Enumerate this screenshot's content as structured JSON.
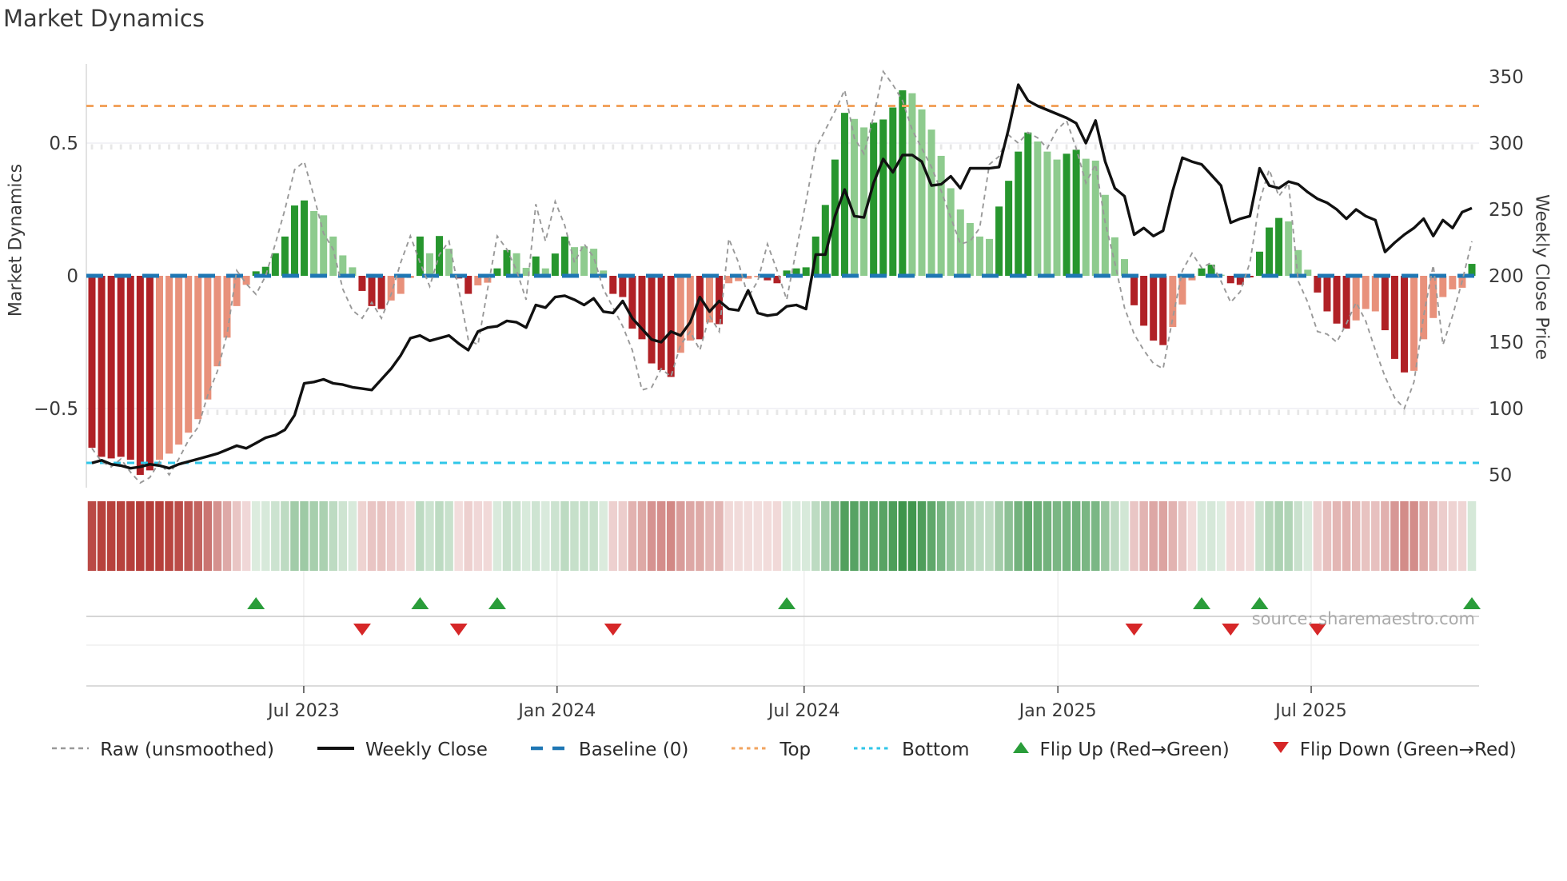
{
  "title": "Market Dynamics",
  "source_text": "source: sharemaestro.com",
  "chart_data": {
    "type": "bar",
    "title": "Market Dynamics",
    "ylabel_left": "Market Dynamics",
    "ylabel_right": "Weekly Close Price",
    "ylim": [
      -0.8,
      0.8
    ],
    "price_ylim": [
      40,
      360
    ],
    "grid": "horizontal at +0.5 and -0.5 only",
    "legend_position": "bottom center",
    "left_ticks": [
      {
        "v": 0.5,
        "label": "0.5"
      },
      {
        "v": 0.0,
        "label": "0"
      },
      {
        "v": -0.5,
        "label": "−0.5"
      }
    ],
    "right_ticks": [
      {
        "p": 350,
        "label": "350"
      },
      {
        "p": 300,
        "label": "300"
      },
      {
        "p": 250,
        "label": "250"
      },
      {
        "p": 200,
        "label": "200"
      },
      {
        "p": 150,
        "label": "150"
      },
      {
        "p": 100,
        "label": "100"
      },
      {
        "p": 50,
        "label": "50"
      }
    ],
    "x_ticks": [
      {
        "week": 21.95,
        "label": "Jul 2023"
      },
      {
        "week": 48.2,
        "label": "Jan 2024"
      },
      {
        "week": 73.8,
        "label": "Jul 2024"
      },
      {
        "week": 100.1,
        "label": "Jan 2025"
      },
      {
        "week": 126.35,
        "label": "Jul 2025"
      }
    ],
    "top_line": 0.64,
    "bottom_line": -0.705,
    "baseline": 0.0,
    "bar_values": [
      -0.648,
      -0.682,
      -0.688,
      -0.682,
      -0.693,
      -0.75,
      -0.733,
      -0.693,
      -0.67,
      -0.636,
      -0.591,
      -0.54,
      -0.466,
      -0.341,
      -0.233,
      -0.114,
      -0.034,
      0.017,
      0.034,
      0.085,
      0.148,
      0.265,
      0.284,
      0.244,
      0.228,
      0.148,
      0.077,
      0.032,
      -0.057,
      -0.114,
      -0.125,
      -0.093,
      -0.068,
      -0.008,
      0.148,
      0.085,
      0.15,
      0.102,
      -0.01,
      -0.068,
      -0.036,
      -0.026,
      0.028,
      0.097,
      0.085,
      0.03,
      0.073,
      0.028,
      0.084,
      0.148,
      0.108,
      0.111,
      0.102,
      0.02,
      -0.068,
      -0.08,
      -0.199,
      -0.239,
      -0.33,
      -0.355,
      -0.381,
      -0.29,
      -0.244,
      -0.239,
      -0.176,
      -0.182,
      -0.028,
      -0.02,
      -0.011,
      -0.005,
      -0.017,
      -0.028,
      0.02,
      0.028,
      0.032,
      0.148,
      0.267,
      0.438,
      0.614,
      0.591,
      0.559,
      0.577,
      0.589,
      0.634,
      0.699,
      0.688,
      0.627,
      0.551,
      0.452,
      0.33,
      0.25,
      0.199,
      0.148,
      0.139,
      0.261,
      0.358,
      0.468,
      0.54,
      0.506,
      0.468,
      0.438,
      0.46,
      0.475,
      0.441,
      0.434,
      0.305,
      0.145,
      0.063,
      -0.111,
      -0.188,
      -0.244,
      -0.261,
      -0.193,
      -0.108,
      -0.017,
      0.028,
      0.042,
      0.004,
      -0.028,
      -0.034,
      -0.006,
      0.091,
      0.182,
      0.218,
      0.205,
      0.097,
      0.023,
      -0.063,
      -0.134,
      -0.18,
      -0.199,
      -0.168,
      -0.125,
      -0.134,
      -0.205,
      -0.313,
      -0.364,
      -0.358,
      -0.239,
      -0.159,
      -0.08,
      -0.051,
      -0.045,
      0.045
    ],
    "bar_shades": [
      "dr",
      "dr",
      "dr",
      "dr",
      "dr",
      "dr",
      "dr",
      "lr",
      "lr",
      "lr",
      "lr",
      "lr",
      "lr",
      "lr",
      "lr",
      "lr",
      "lr",
      "dg",
      "dg",
      "dg",
      "dg",
      "dg",
      "dg",
      "lg",
      "lg",
      "lg",
      "lg",
      "lg",
      "dr",
      "dr",
      "dr",
      "lr",
      "lr",
      "lr",
      "dg",
      "lg",
      "dg",
      "lg",
      "dr",
      "dr",
      "lr",
      "lr",
      "dg",
      "dg",
      "lg",
      "lg",
      "dg",
      "lg",
      "dg",
      "dg",
      "lg",
      "lg",
      "lg",
      "lg",
      "dr",
      "dr",
      "dr",
      "dr",
      "dr",
      "dr",
      "dr",
      "lr",
      "lr",
      "dr",
      "lr",
      "dr",
      "lr",
      "lr",
      "lr",
      "lr",
      "dr",
      "dr",
      "dg",
      "dg",
      "dg",
      "dg",
      "dg",
      "dg",
      "dg",
      "lg",
      "lg",
      "dg",
      "dg",
      "dg",
      "dg",
      "lg",
      "lg",
      "lg",
      "lg",
      "lg",
      "lg",
      "lg",
      "lg",
      "lg",
      "dg",
      "dg",
      "dg",
      "dg",
      "lg",
      "lg",
      "lg",
      "dg",
      "dg",
      "lg",
      "lg",
      "lg",
      "lg",
      "lg",
      "dr",
      "dr",
      "dr",
      "dr",
      "lr",
      "lr",
      "lr",
      "dg",
      "dg",
      "lg",
      "dr",
      "dr",
      "dr",
      "dg",
      "dg",
      "dg",
      "lg",
      "lg",
      "lg",
      "dr",
      "dr",
      "dr",
      "dr",
      "lr",
      "lr",
      "lr",
      "dr",
      "dr",
      "dr",
      "lr",
      "lr",
      "lr",
      "lr",
      "lr",
      "lr",
      "dg"
    ],
    "raw_values": [
      -0.65,
      -0.7,
      -0.72,
      -0.69,
      -0.74,
      -0.78,
      -0.76,
      -0.7,
      -0.75,
      -0.69,
      -0.62,
      -0.57,
      -0.45,
      -0.36,
      -0.22,
      0.02,
      -0.03,
      -0.07,
      0.0,
      0.12,
      0.25,
      0.4,
      0.43,
      0.3,
      0.16,
      0.1,
      -0.05,
      -0.13,
      -0.16,
      -0.1,
      -0.16,
      -0.07,
      0.05,
      0.15,
      0.05,
      -0.04,
      0.08,
      0.13,
      -0.05,
      -0.24,
      -0.26,
      -0.05,
      0.15,
      0.1,
      0.02,
      -0.09,
      0.27,
      0.13,
      0.28,
      0.19,
      0.05,
      0.12,
      0.07,
      -0.05,
      -0.12,
      -0.19,
      -0.28,
      -0.43,
      -0.42,
      -0.35,
      -0.38,
      -0.26,
      -0.21,
      -0.28,
      -0.15,
      -0.21,
      0.14,
      0.05,
      -0.08,
      -0.02,
      0.12,
      0.02,
      -0.09,
      0.1,
      0.28,
      0.48,
      0.55,
      0.62,
      0.7,
      0.52,
      0.46,
      0.6,
      0.77,
      0.72,
      0.66,
      0.55,
      0.48,
      0.41,
      0.32,
      0.22,
      0.12,
      0.13,
      0.18,
      0.42,
      0.45,
      0.53,
      0.5,
      0.54,
      0.52,
      0.48,
      0.55,
      0.585,
      0.48,
      0.35,
      0.42,
      0.2,
      0.05,
      -0.12,
      -0.22,
      -0.28,
      -0.33,
      -0.35,
      -0.16,
      0.02,
      0.085,
      0.03,
      0.05,
      -0.02,
      -0.1,
      -0.06,
      0.05,
      0.28,
      0.4,
      0.3,
      0.35,
      -0.02,
      -0.1,
      -0.21,
      -0.22,
      -0.25,
      -0.18,
      -0.1,
      -0.17,
      -0.28,
      -0.38,
      -0.46,
      -0.5,
      -0.4,
      -0.15,
      0.04,
      -0.26,
      -0.15,
      -0.02,
      0.13
    ],
    "price_values": [
      59,
      61,
      58,
      57,
      55,
      56,
      58,
      57,
      55,
      58,
      60,
      62,
      64,
      66,
      69,
      72,
      70,
      74,
      78,
      80,
      84,
      95,
      119,
      120,
      122,
      119,
      118,
      116,
      115,
      114,
      122,
      130,
      140,
      153,
      155,
      151,
      153,
      155,
      149,
      144,
      158,
      161,
      162,
      166,
      165,
      161,
      178,
      176,
      184,
      185,
      182,
      178,
      183,
      173,
      172,
      181,
      168,
      160,
      152,
      150,
      158,
      155,
      165,
      184,
      173,
      181,
      175,
      174,
      189,
      172,
      170,
      171,
      177,
      178,
      175,
      216,
      216,
      245,
      265,
      245,
      244,
      270,
      288,
      278,
      291,
      291,
      286,
      268,
      269,
      275,
      266,
      281,
      281,
      281,
      282,
      311,
      344,
      332,
      328,
      325,
      322,
      319,
      315,
      300,
      317,
      286,
      266,
      260,
      231,
      236,
      230,
      234,
      264,
      289,
      286,
      284,
      276,
      268,
      240,
      243,
      245,
      281,
      268,
      266,
      271,
      269,
      263,
      258,
      255,
      250,
      243,
      250,
      245,
      242,
      218,
      225,
      231,
      236,
      243,
      230,
      242,
      236,
      248,
      251
    ],
    "flip_up_weeks": [
      17,
      34,
      42,
      72,
      115,
      121,
      143
    ],
    "flip_down_weeks": [
      28,
      38,
      54,
      108,
      118,
      127
    ],
    "legend": {
      "items": [
        {
          "label": "Raw (unsmoothed)"
        },
        {
          "label": "Weekly Close"
        },
        {
          "label": "Baseline (0)"
        },
        {
          "label": "Top"
        },
        {
          "label": "Bottom"
        },
        {
          "label": "Flip Up (Red→Green)"
        },
        {
          "label": "Flip Down (Green→Red)"
        }
      ]
    },
    "colors": {
      "dark_red": "#b02126",
      "light_red": "#e8917b",
      "dark_green": "#27962e",
      "light_green": "#8ecb8e",
      "heat_red": "#af2d28",
      "heat_green": "#2d8c3c",
      "baseline_blue": "#1f77b4",
      "top_orange": "#f2a35e",
      "bottom_cyan": "#2fc6e8",
      "raw_gray": "#999999",
      "price_black": "#111111",
      "flip_up_green": "#2a9d3a",
      "flip_down_red": "#d62728",
      "text_dark": "#3a3a3a",
      "source_gray": "#aaaaaa"
    }
  }
}
